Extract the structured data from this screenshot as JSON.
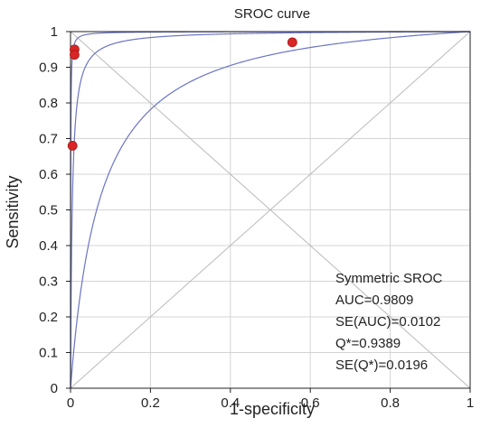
{
  "chart_data": {
    "type": "scatter",
    "title": "SROC curve",
    "xlabel": "1-specificity",
    "ylabel": "Sensitivity",
    "xlim": [
      0,
      1
    ],
    "ylim": [
      0,
      1
    ],
    "x_ticks": [
      "0",
      "0.2",
      "0.4",
      "0.6",
      "0.8",
      "1"
    ],
    "x_tick_values": [
      0,
      0.2,
      0.4,
      0.6,
      0.8,
      1
    ],
    "y_ticks": [
      "0",
      "0.1",
      "0.2",
      "0.3",
      "0.4",
      "0.5",
      "0.6",
      "0.7",
      "0.8",
      "0.9",
      "1"
    ],
    "y_tick_values": [
      0,
      0.1,
      0.2,
      0.3,
      0.4,
      0.5,
      0.6,
      0.7,
      0.8,
      0.9,
      1
    ],
    "grid": true,
    "points": [
      {
        "x": 0.01,
        "y": 0.95
      },
      {
        "x": 0.01,
        "y": 0.935
      },
      {
        "x": 0.005,
        "y": 0.68
      },
      {
        "x": 0.555,
        "y": 0.97
      }
    ],
    "curves": {
      "sroc_auc": 0.9809,
      "ci_upper_auc": 0.9976,
      "ci_lower_auc": 0.86
    },
    "reference_lines": [
      "diagonal",
      "anti-diagonal"
    ],
    "colors": {
      "points": "#d92525",
      "curves": "#6b74c6",
      "grid": "#d4d4d4",
      "reference": "#bbbbbb"
    },
    "annotation": [
      "Symmetric SROC",
      "AUC=0.9809",
      "SE(AUC)=0.0102",
      "Q*=0.9389",
      "SE(Q*)=0.0196"
    ]
  }
}
